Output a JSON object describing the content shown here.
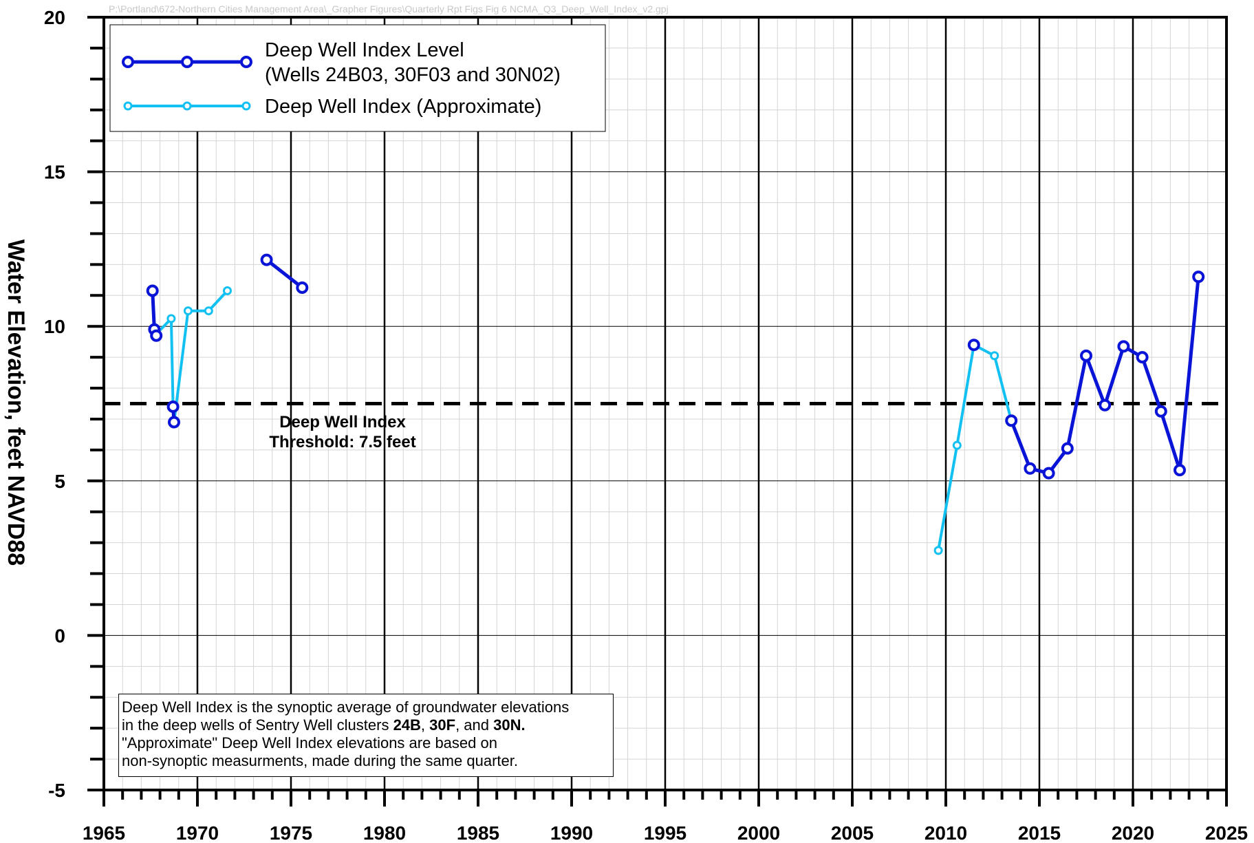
{
  "file_path_label": "P:\\Portland\\672-Northern Cities Management Area\\_Grapher Figures\\Quarterly Rpt Figs Fig 6 NCMA_Q3_Deep_Well_Index_v2.gpj",
  "note": {
    "line1": "Deep Well Index is the synoptic average of groundwater elevations",
    "line2_pre": "in the deep wells of Sentry Well clusters ",
    "line2_b1": "24B",
    "line2_mid1": ", ",
    "line2_b2": "30F",
    "line2_mid2": ", and ",
    "line2_b3": "30N.",
    "line3": "\"Approximate\" Deep Well Index elevations are based on",
    "line4": "non-synoptic measurments, made during the same quarter."
  },
  "legend": {
    "entry1_line1": "Deep Well Index Level",
    "entry1_line2": "(Wells 24B03, 30F03 and 30N02)",
    "entry2": "Deep Well Index (Approximate)"
  },
  "threshold": {
    "value": 7.5,
    "label_line1": "Deep Well Index",
    "label_line2": "Threshold: 7.5 feet"
  },
  "chart_data": {
    "type": "line",
    "title": "",
    "xlabel": "",
    "ylabel": "Water Elevation, feet NAVD88",
    "xlim": [
      1965,
      2025
    ],
    "ylim": [
      -5,
      20
    ],
    "x_ticks": [
      1965,
      1970,
      1975,
      1980,
      1985,
      1990,
      1995,
      2000,
      2005,
      2010,
      2015,
      2020,
      2025
    ],
    "y_ticks": [
      -5,
      0,
      5,
      10,
      15,
      20
    ],
    "y_tick_labels": [
      "-5",
      "0",
      "5",
      "10",
      "15",
      "20"
    ],
    "x_tick_labels": [
      "1965",
      "1970",
      "1975",
      "1980",
      "1985",
      "1990",
      "1995",
      "2000",
      "2005",
      "2010",
      "2015",
      "2020",
      "2025"
    ],
    "grid": true,
    "legend_position": "top-left",
    "colors": {
      "level": "#0a14d6",
      "approximate": "#12c1f1",
      "threshold": "#000000"
    },
    "series": [
      {
        "name": "Deep Well Index Level",
        "segments": [
          [
            [
              1967.6,
              11.15
            ],
            [
              1967.7,
              9.9
            ],
            [
              1967.8,
              9.7
            ]
          ],
          [
            [
              1968.7,
              7.4
            ],
            [
              1968.75,
              6.9
            ]
          ],
          [
            [
              1973.7,
              12.15
            ],
            [
              1975.6,
              11.25
            ]
          ],
          [
            [
              2011.5,
              9.4
            ]
          ],
          [
            [
              2013.5,
              6.95
            ],
            [
              2014.5,
              5.4
            ],
            [
              2015.5,
              5.25
            ],
            [
              2016.5,
              6.05
            ],
            [
              2017.5,
              9.05
            ],
            [
              2018.5,
              7.45
            ],
            [
              2019.5,
              9.35
            ],
            [
              2020.5,
              9.0
            ],
            [
              2021.5,
              7.25
            ],
            [
              2022.5,
              5.35
            ],
            [
              2023.5,
              11.6
            ]
          ]
        ]
      },
      {
        "name": "Deep Well Index (Approximate)",
        "segments": [
          [
            [
              1967.8,
              9.75
            ],
            [
              1968.6,
              10.25
            ],
            [
              1968.7,
              7.4
            ]
          ],
          [
            [
              1968.75,
              6.9
            ],
            [
              1969.5,
              10.5
            ],
            [
              1970.6,
              10.5
            ],
            [
              1971.6,
              11.15
            ]
          ],
          [
            [
              2009.6,
              2.75
            ],
            [
              2010.6,
              6.15
            ],
            [
              2011.5,
              9.4
            ],
            [
              2012.6,
              9.05
            ],
            [
              2013.5,
              6.95
            ]
          ]
        ]
      }
    ]
  }
}
